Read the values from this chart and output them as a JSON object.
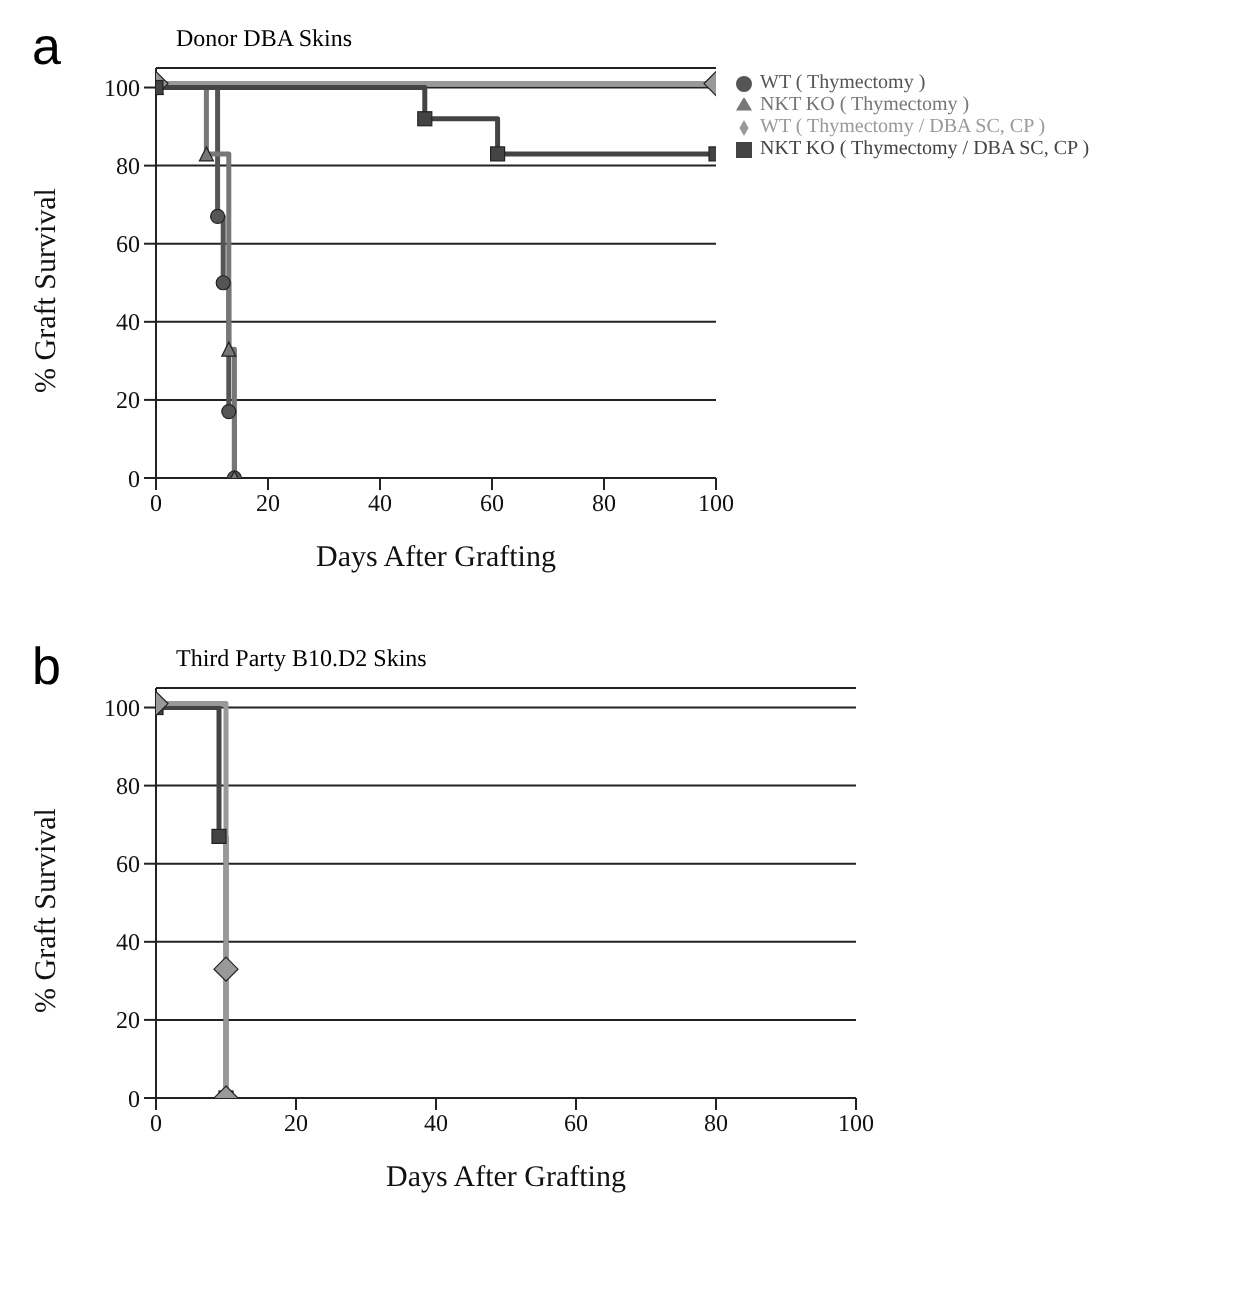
{
  "chart_data": [
    {
      "type": "step",
      "title": "Donor DBA Skins",
      "annotations": [
        "a"
      ],
      "xlabel": "Days After Grafting",
      "ylabel": "% Graft Survival",
      "xlim": [
        0,
        100
      ],
      "xticks": [
        0,
        20,
        40,
        60,
        80,
        100
      ],
      "ylim": [
        0,
        105
      ],
      "yticks": [
        0,
        20,
        40,
        60,
        80,
        100
      ],
      "grid": "y",
      "legend": "top right",
      "series": [
        {
          "name": "WT ( Thymectomy )",
          "color": "#555555",
          "marker": "circle",
          "x": [
            0,
            11,
            12,
            13,
            14
          ],
          "values": [
            100,
            67,
            50,
            17,
            0
          ]
        },
        {
          "name": "NKT KO ( Thymectomy )",
          "color": "#777777",
          "marker": "triangle",
          "x": [
            0,
            9,
            13,
            14
          ],
          "values": [
            100,
            83,
            33,
            0
          ]
        },
        {
          "name": "WT ( Thymectomy / DBA SC, CP )",
          "color": "#999999",
          "marker": "diamond",
          "x": [
            0,
            100
          ],
          "values": [
            101,
            101
          ]
        },
        {
          "name": "NKT KO ( Thymectomy / DBA SC, CP )",
          "color": "#444444",
          "marker": "square",
          "x": [
            0,
            48,
            61,
            100
          ],
          "values": [
            100,
            92,
            83,
            83
          ]
        }
      ]
    },
    {
      "type": "step",
      "title": "Third Party B10.D2 Skins",
      "annotations": [
        "b"
      ],
      "xlabel": "Days After Grafting",
      "ylabel": "% Graft Survival",
      "xlim": [
        0,
        100
      ],
      "xticks": [
        0,
        20,
        40,
        60,
        80,
        100
      ],
      "ylim": [
        0,
        105
      ],
      "yticks": [
        0,
        20,
        40,
        60,
        80,
        100
      ],
      "grid": "y",
      "series": [
        {
          "color": "#444444",
          "marker": "square",
          "x": [
            0,
            9,
            10
          ],
          "values": [
            100,
            67,
            0
          ]
        },
        {
          "color": "#999999",
          "marker": "diamond",
          "x": [
            0,
            10,
            10
          ],
          "values": [
            101,
            33,
            0
          ]
        }
      ]
    }
  ]
}
